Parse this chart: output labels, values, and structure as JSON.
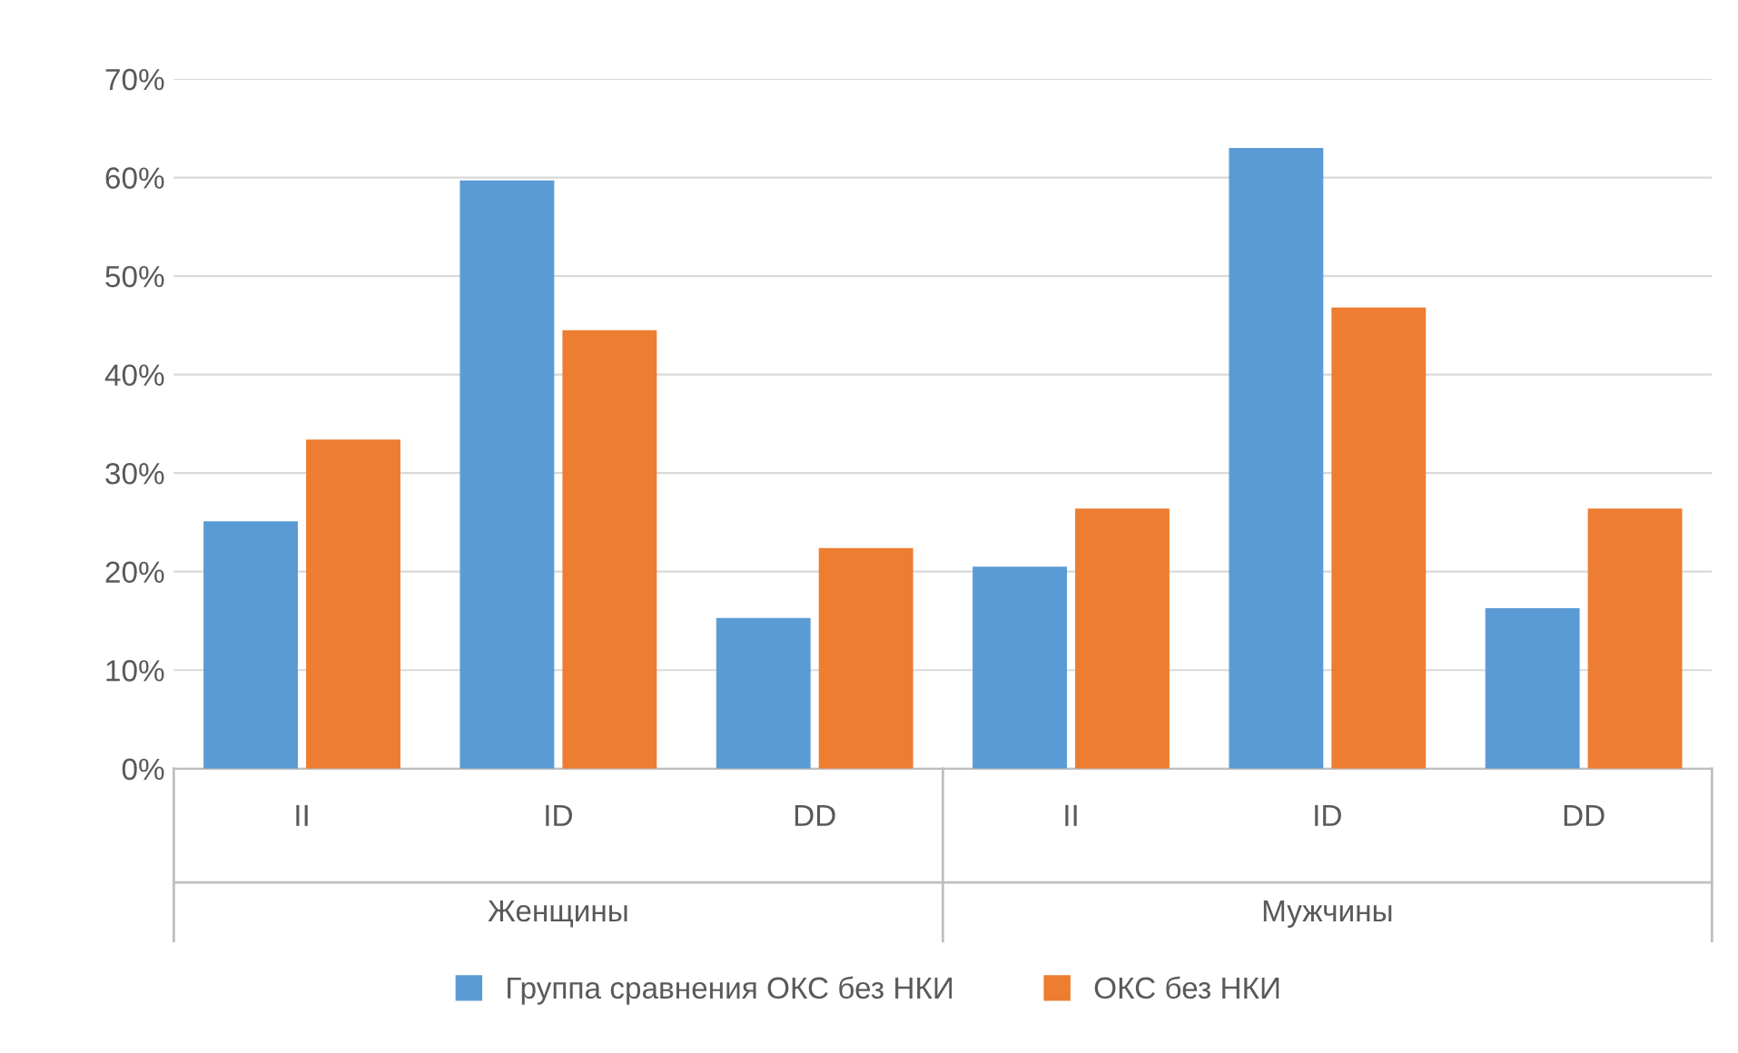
{
  "chart_data": {
    "type": "bar",
    "categories": [
      "II",
      "ID",
      "DD",
      "II",
      "ID",
      "DD"
    ],
    "series": [
      {
        "name": "Группа сравнения ОКС без НКИ",
        "color": "#5b9bd5",
        "values": [
          25.1,
          59.7,
          15.3,
          20.5,
          63.0,
          16.3
        ]
      },
      {
        "name": "ОКС без НКИ",
        "color": "#ed7d31",
        "values": [
          33.4,
          44.5,
          22.4,
          26.4,
          46.8,
          26.4
        ]
      }
    ],
    "annotations": [
      "Женщины",
      "Мужчины"
    ],
    "ylim": [
      0,
      70
    ],
    "yticks": [
      {
        "value": 0,
        "label": "0%"
      },
      {
        "value": 10,
        "label": "10%"
      },
      {
        "value": 20,
        "label": "20%"
      },
      {
        "value": 30,
        "label": "30%"
      },
      {
        "value": 40,
        "label": "40%"
      },
      {
        "value": 50,
        "label": "50%"
      },
      {
        "value": 60,
        "label": "60%"
      },
      {
        "value": 70,
        "label": "70%"
      }
    ],
    "grid": "y",
    "legend": "bottom"
  }
}
